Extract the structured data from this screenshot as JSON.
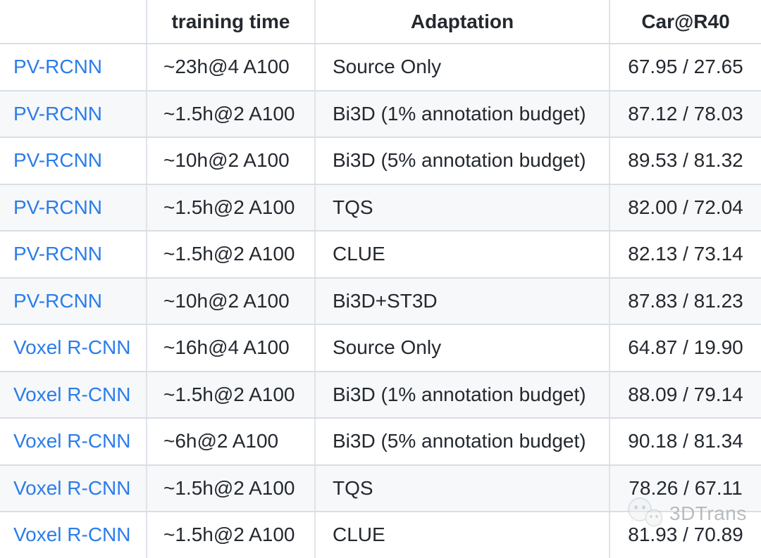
{
  "chart_data": {
    "type": "table",
    "columns": [
      "",
      "training time",
      "Adaptation",
      "Car@R40"
    ],
    "rows": [
      [
        "PV-RCNN",
        "~23h@4 A100",
        "Source Only",
        "67.95 / 27.65"
      ],
      [
        "PV-RCNN",
        "~1.5h@2 A100",
        "Bi3D (1% annotation budget)",
        "87.12 / 78.03"
      ],
      [
        "PV-RCNN",
        "~10h@2 A100",
        "Bi3D (5% annotation budget)",
        "89.53 / 81.32"
      ],
      [
        "PV-RCNN",
        "~1.5h@2 A100",
        "TQS",
        "82.00 / 72.04"
      ],
      [
        "PV-RCNN",
        "~1.5h@2 A100",
        "CLUE",
        "82.13 / 73.14"
      ],
      [
        "PV-RCNN",
        "~10h@2 A100",
        "Bi3D+ST3D",
        "87.83 / 81.23"
      ],
      [
        "Voxel R-CNN",
        "~16h@4 A100",
        "Source Only",
        "64.87 / 19.90"
      ],
      [
        "Voxel R-CNN",
        "~1.5h@2 A100",
        "Bi3D (1% annotation budget)",
        "88.09 / 79.14"
      ],
      [
        "Voxel R-CNN",
        "~6h@2 A100",
        "Bi3D (5% annotation budget)",
        "90.18 / 81.34"
      ],
      [
        "Voxel R-CNN",
        "~1.5h@2 A100",
        "TQS",
        "78.26 / 67.11"
      ],
      [
        "Voxel R-CNN",
        "~1.5h@2 A100",
        "CLUE",
        "81.93 / 70.89"
      ]
    ],
    "notes": "Column 1 entries are blue hyperlinks; Car@R40 values are 'moderate AP / hard AP' pairs"
  },
  "watermark": {
    "label": "3DTrans",
    "icon": "wechat-icon"
  },
  "colors": {
    "link_blue": "#2b7de9",
    "text": "#24292f",
    "alt_row_bg": "#f6f8fa",
    "border_horizontal": "#d9dee5",
    "border_vertical": "#e0e4ea",
    "watermark_gray": "#a3a8ad"
  }
}
